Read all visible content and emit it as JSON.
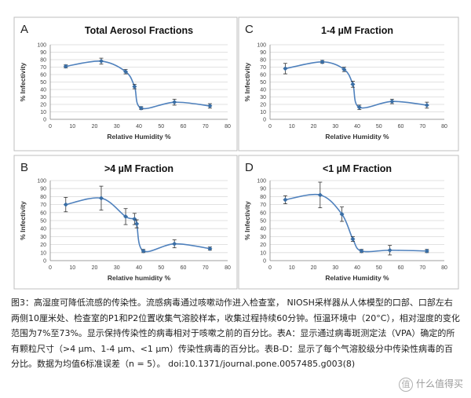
{
  "chart_data": [
    {
      "panel": "A",
      "type": "line",
      "title": "Total Aerosol Fractions",
      "xlabel": "Relative Humidity %",
      "ylabel": "% Infectivity",
      "xlim": [
        0,
        80
      ],
      "ylim": [
        0,
        100
      ],
      "xticks": [
        0,
        10,
        20,
        30,
        40,
        50,
        60,
        70,
        80
      ],
      "yticks": [
        0,
        10,
        20,
        30,
        40,
        50,
        60,
        70,
        80,
        90,
        100
      ],
      "series": [
        {
          "x": [
            7,
            23,
            34,
            38,
            41,
            56,
            72
          ],
          "y": [
            71,
            78,
            64,
            44,
            15,
            23,
            18
          ],
          "err": [
            2,
            4,
            3,
            3,
            2,
            4,
            3
          ]
        }
      ]
    },
    {
      "panel": "C",
      "type": "line",
      "title": "1-4 µM Fraction",
      "xlabel": "Relative Humidity %",
      "ylabel": "% Infectivity",
      "xlim": [
        0,
        80
      ],
      "ylim": [
        0,
        100
      ],
      "xticks": [
        0,
        10,
        20,
        30,
        40,
        50,
        60,
        70,
        80
      ],
      "yticks": [
        0,
        10,
        20,
        30,
        40,
        50,
        60,
        70,
        80,
        90,
        100
      ],
      "series": [
        {
          "x": [
            7,
            24,
            34,
            38,
            41,
            56,
            72
          ],
          "y": [
            68,
            77,
            67,
            47,
            16,
            24,
            19
          ],
          "err": [
            7,
            2,
            3,
            4,
            3,
            3,
            4
          ]
        }
      ]
    },
    {
      "panel": "B",
      "type": "line",
      "title": ">4 µM Fraction",
      "xlabel": "Relative humidity %",
      "ylabel": "% Infectivity",
      "xlim": [
        0,
        80
      ],
      "ylim": [
        0,
        100
      ],
      "xticks": [
        0,
        10,
        20,
        30,
        40,
        50,
        60,
        70,
        80
      ],
      "yticks": [
        0,
        10,
        20,
        30,
        40,
        50,
        60,
        70,
        80,
        90,
        100
      ],
      "series": [
        {
          "x": [
            7,
            23,
            34,
            38,
            39,
            42,
            56,
            72
          ],
          "y": [
            70,
            78,
            55,
            52,
            46,
            12,
            21,
            15
          ],
          "err": [
            9,
            15,
            10,
            7,
            5,
            2,
            5,
            2
          ]
        }
      ]
    },
    {
      "panel": "D",
      "type": "line",
      "title": "<1 µM Fraction",
      "xlabel": "Relative Humidity %",
      "ylabel": "% Infectivity",
      "xlim": [
        0,
        80
      ],
      "ylim": [
        0,
        100
      ],
      "xticks": [
        0,
        10,
        20,
        30,
        40,
        50,
        60,
        70,
        80
      ],
      "yticks": [
        0,
        10,
        20,
        30,
        40,
        50,
        60,
        70,
        80,
        90,
        100
      ],
      "series": [
        {
          "x": [
            7,
            23,
            33,
            38,
            42,
            55,
            72
          ],
          "y": [
            76,
            82,
            58,
            27,
            12,
            13,
            12
          ],
          "err": [
            5,
            16,
            9,
            3,
            2,
            6,
            2
          ]
        }
      ]
    }
  ],
  "caption": "图3：高湿度可降低流感的传染性。流感病毒通过咳嗽动作进入检查室， NIOSH采样器从人体模型的口部、口部左右两侧10厘米处、检查室的P1和P2位置收集气溶胶样本，收集过程持续60分钟。恒温环境中（20°C），相对湿度的变化范围为7%至73%。显示保持传染性的病毒相对于咳嗽之前的百分比。表A：显示通过病毒斑测定法（VPA）确定的所有颗粒尺寸（>4 μm、1-4 μm、<1 μm）传染性病毒的百分比。表B-D：显示了每个气溶胶级分中传染性病毒的百分比。数据为均值6标准误差（n = 5）。 doi:10.1371/journal.pone.0057485.g003(8)",
  "watermark": "什么值得买",
  "watermark_badge": "值",
  "colors": {
    "line": "#4f81bd",
    "marker": "#3a6ea5",
    "grid": "#d9d9d9",
    "frame": "#bfbfbf",
    "plot_bg": "#ffffff"
  }
}
